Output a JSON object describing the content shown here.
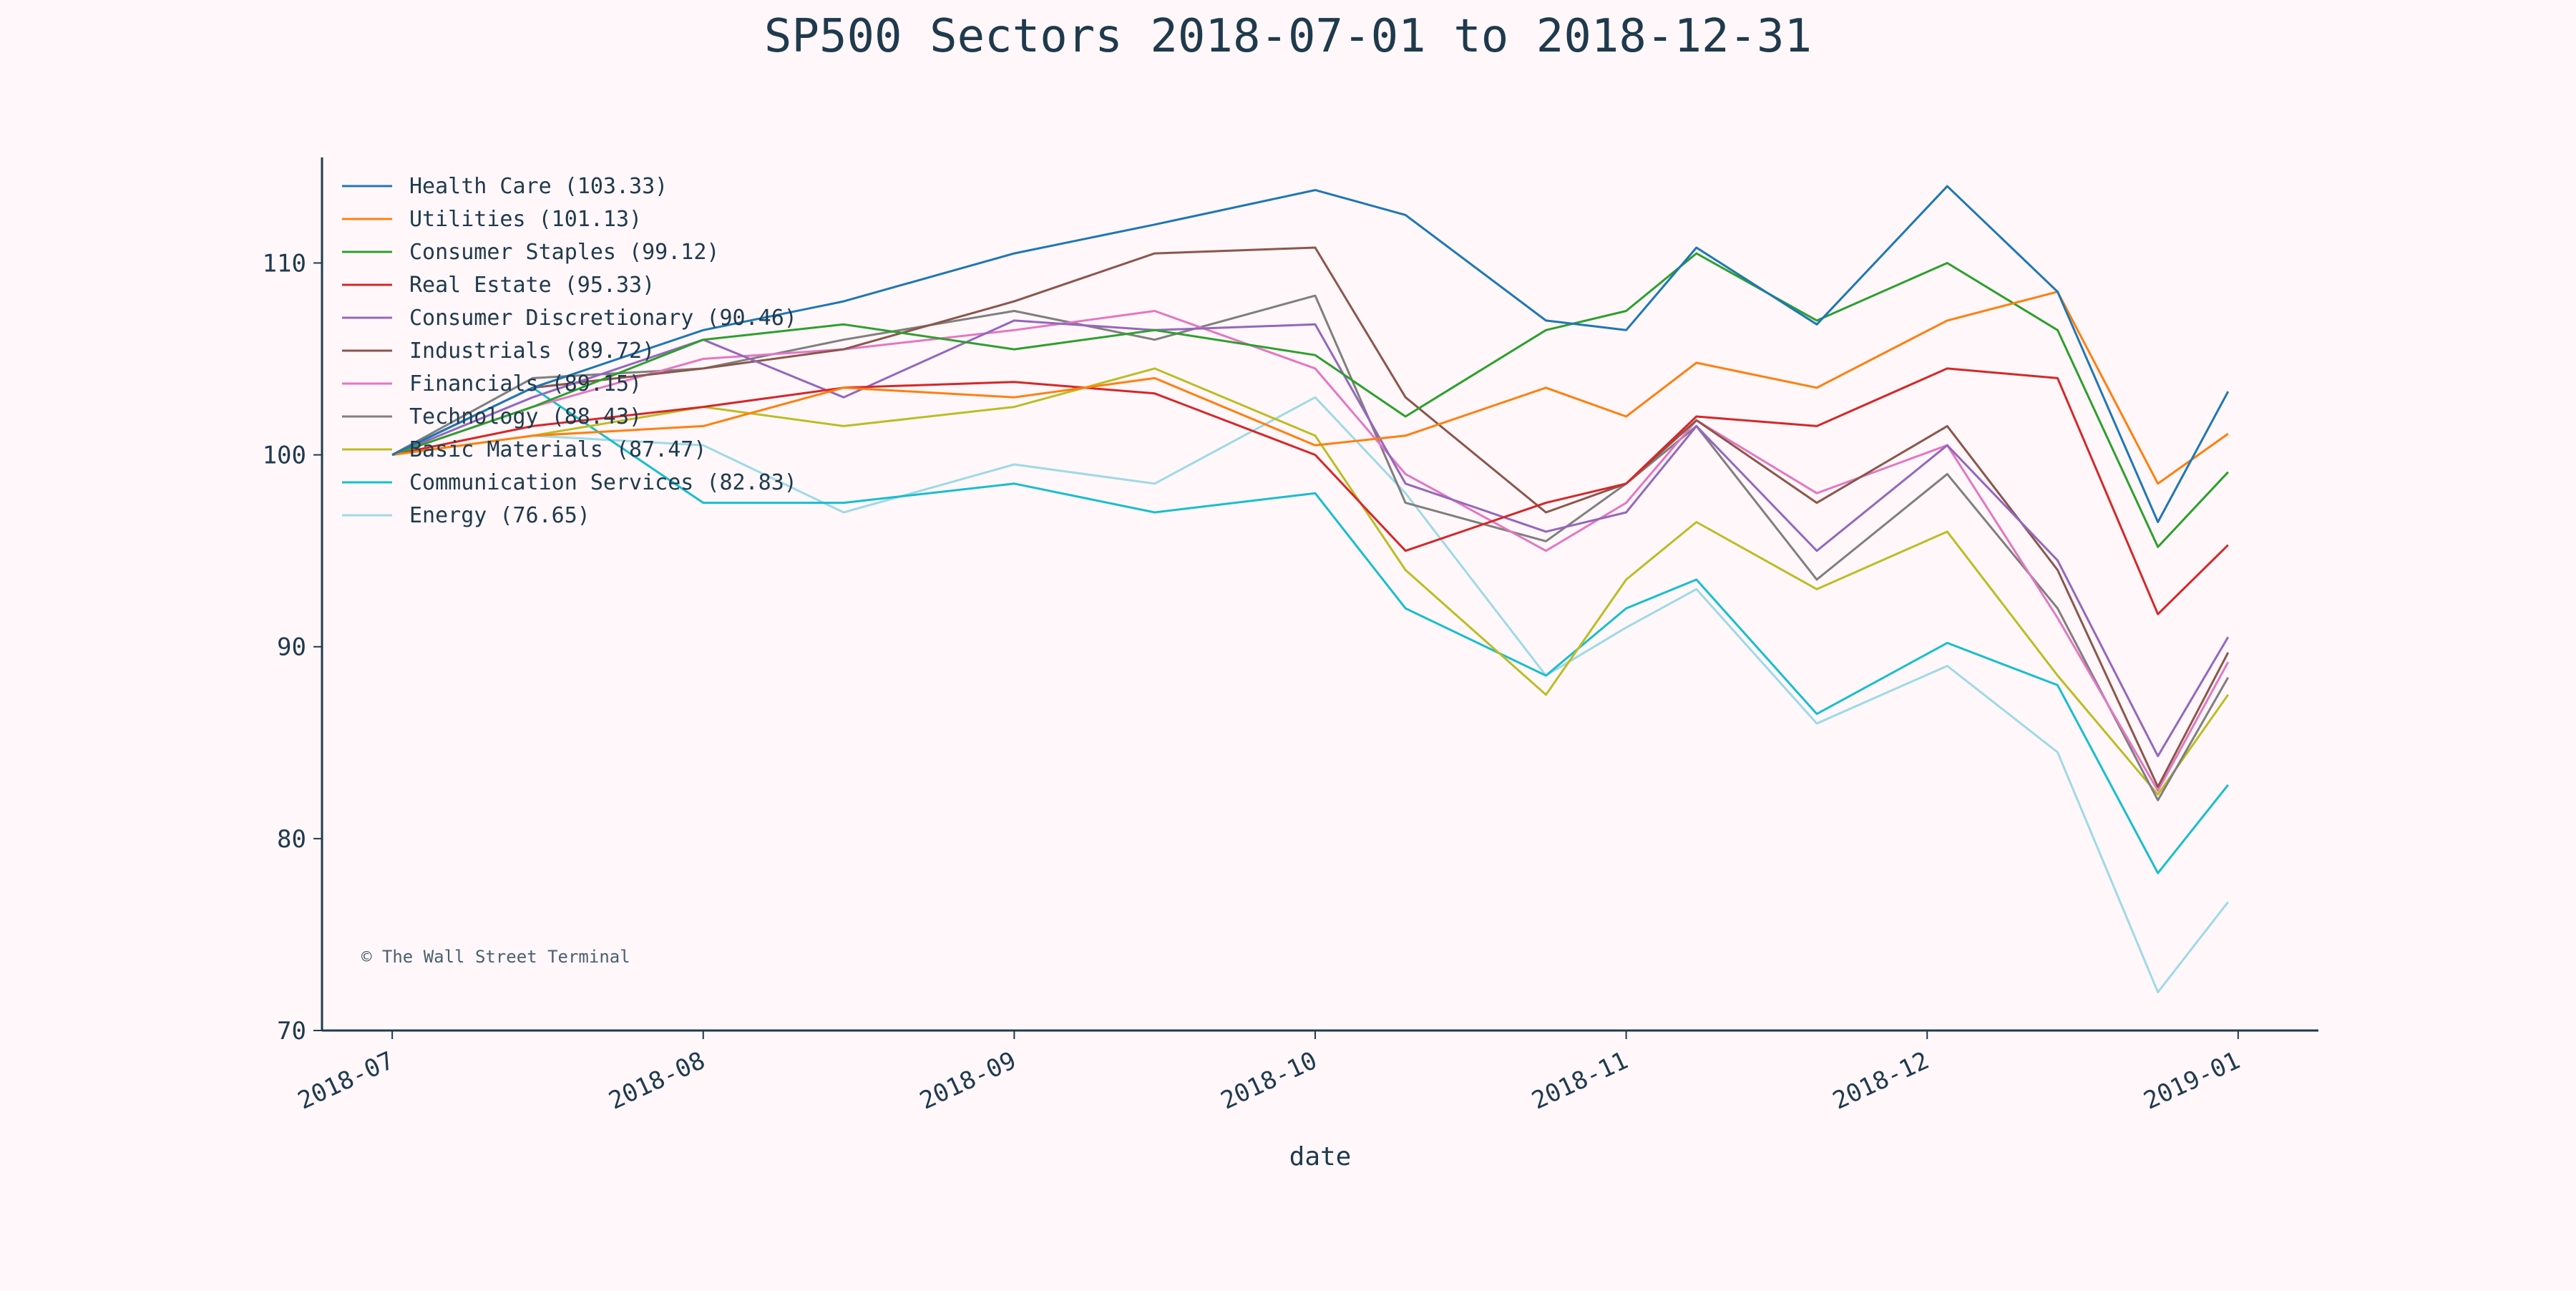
{
  "chart_data": {
    "type": "line",
    "title": "SP500 Sectors 2018-07-01 to 2018-12-31",
    "xlabel": "date",
    "ylabel": "",
    "watermark": "© The Wall Street Terminal",
    "x_range": [
      "2018-06-24",
      "2019-01-09"
    ],
    "ylim": [
      70,
      115.5
    ],
    "x_ticks": [
      {
        "date": "2018-07-01",
        "label": "2018-07"
      },
      {
        "date": "2018-08-01",
        "label": "2018-08"
      },
      {
        "date": "2018-09-01",
        "label": "2018-09"
      },
      {
        "date": "2018-10-01",
        "label": "2018-10"
      },
      {
        "date": "2018-11-01",
        "label": "2018-11"
      },
      {
        "date": "2018-12-01",
        "label": "2018-12"
      },
      {
        "date": "2019-01-01",
        "label": "2019-01"
      }
    ],
    "y_ticks": [
      70,
      80,
      90,
      100,
      110
    ],
    "grid": false,
    "legend_position": "top-left",
    "colors": {
      "background": "#fff7fa",
      "axis": "#1f3a4d",
      "text": "#1f3a4d",
      "watermark": "#4a6070"
    },
    "x": [
      "2018-07-01",
      "2018-07-15",
      "2018-08-01",
      "2018-08-15",
      "2018-09-01",
      "2018-09-15",
      "2018-10-01",
      "2018-10-10",
      "2018-10-24",
      "2018-11-01",
      "2018-11-08",
      "2018-11-20",
      "2018-12-03",
      "2018-12-14",
      "2018-12-24",
      "2018-12-31"
    ],
    "series": [
      {
        "name": "Health Care (103.33)",
        "color": "#1f77b4",
        "values": [
          100,
          103.5,
          106.5,
          108,
          110.5,
          112,
          113.8,
          112.5,
          107,
          106.5,
          110.8,
          106.8,
          114,
          108.5,
          96.5,
          103.3
        ]
      },
      {
        "name": "Utilities (101.13)",
        "color": "#ff7f0e",
        "values": [
          100,
          101,
          101.5,
          103.5,
          103,
          104,
          100.5,
          101,
          103.5,
          102,
          104.8,
          103.5,
          107,
          108.5,
          98.5,
          101.1
        ]
      },
      {
        "name": "Consumer Staples (99.12)",
        "color": "#2ca02c",
        "values": [
          100,
          102.5,
          106,
          106.8,
          105.5,
          106.5,
          105.2,
          102,
          106.5,
          107.5,
          110.5,
          107,
          110,
          106.5,
          95.2,
          99.1
        ]
      },
      {
        "name": "Real Estate (95.33)",
        "color": "#d62728",
        "values": [
          100,
          101.5,
          102.5,
          103.5,
          103.8,
          103.2,
          100,
          95,
          97.5,
          98.5,
          102,
          101.5,
          104.5,
          104,
          91.7,
          95.3
        ]
      },
      {
        "name": "Consumer Discretionary (90.46)",
        "color": "#9467bd",
        "values": [
          100,
          103,
          106,
          103,
          107,
          106.5,
          106.8,
          98.5,
          96,
          97,
          101.5,
          95,
          100.5,
          94.5,
          84.3,
          90.5
        ]
      },
      {
        "name": "Industrials (89.72)",
        "color": "#8c564b",
        "values": [
          100,
          103.5,
          104.5,
          105.5,
          108,
          110.5,
          110.8,
          103,
          97,
          98.5,
          101.8,
          97.5,
          101.5,
          94,
          82.7,
          89.7
        ]
      },
      {
        "name": "Financials (89.15)",
        "color": "#e377c2",
        "values": [
          100,
          102.5,
          105,
          105.5,
          106.5,
          107.5,
          104.5,
          99,
          95,
          97.5,
          101.8,
          98,
          100.5,
          91.5,
          82.5,
          89.2
        ]
      },
      {
        "name": "Technology (88.43)",
        "color": "#7f7f7f",
        "values": [
          100,
          104,
          104.5,
          106,
          107.5,
          106,
          108.3,
          97.5,
          95.5,
          98.5,
          101.5,
          93.5,
          99,
          92,
          82,
          88.4
        ]
      },
      {
        "name": "Basic Materials (87.47)",
        "color": "#bcbd22",
        "values": [
          100,
          101,
          102.5,
          101.5,
          102.5,
          104.5,
          101,
          94,
          87.5,
          93.5,
          96.5,
          93,
          96,
          88.5,
          82.3,
          87.5
        ]
      },
      {
        "name": "Communication Services (82.83)",
        "color": "#17becf",
        "values": [
          100,
          103.5,
          97.5,
          97.5,
          98.5,
          97,
          98,
          92,
          88.5,
          92,
          93.5,
          86.5,
          90.2,
          88,
          78.2,
          82.8
        ]
      },
      {
        "name": "Energy (76.65)",
        "color": "#9edae5",
        "values": [
          100,
          101,
          100.5,
          97,
          99.5,
          98.5,
          103,
          98,
          88.5,
          91,
          93,
          86,
          89,
          84.5,
          72,
          76.7
        ]
      }
    ]
  }
}
